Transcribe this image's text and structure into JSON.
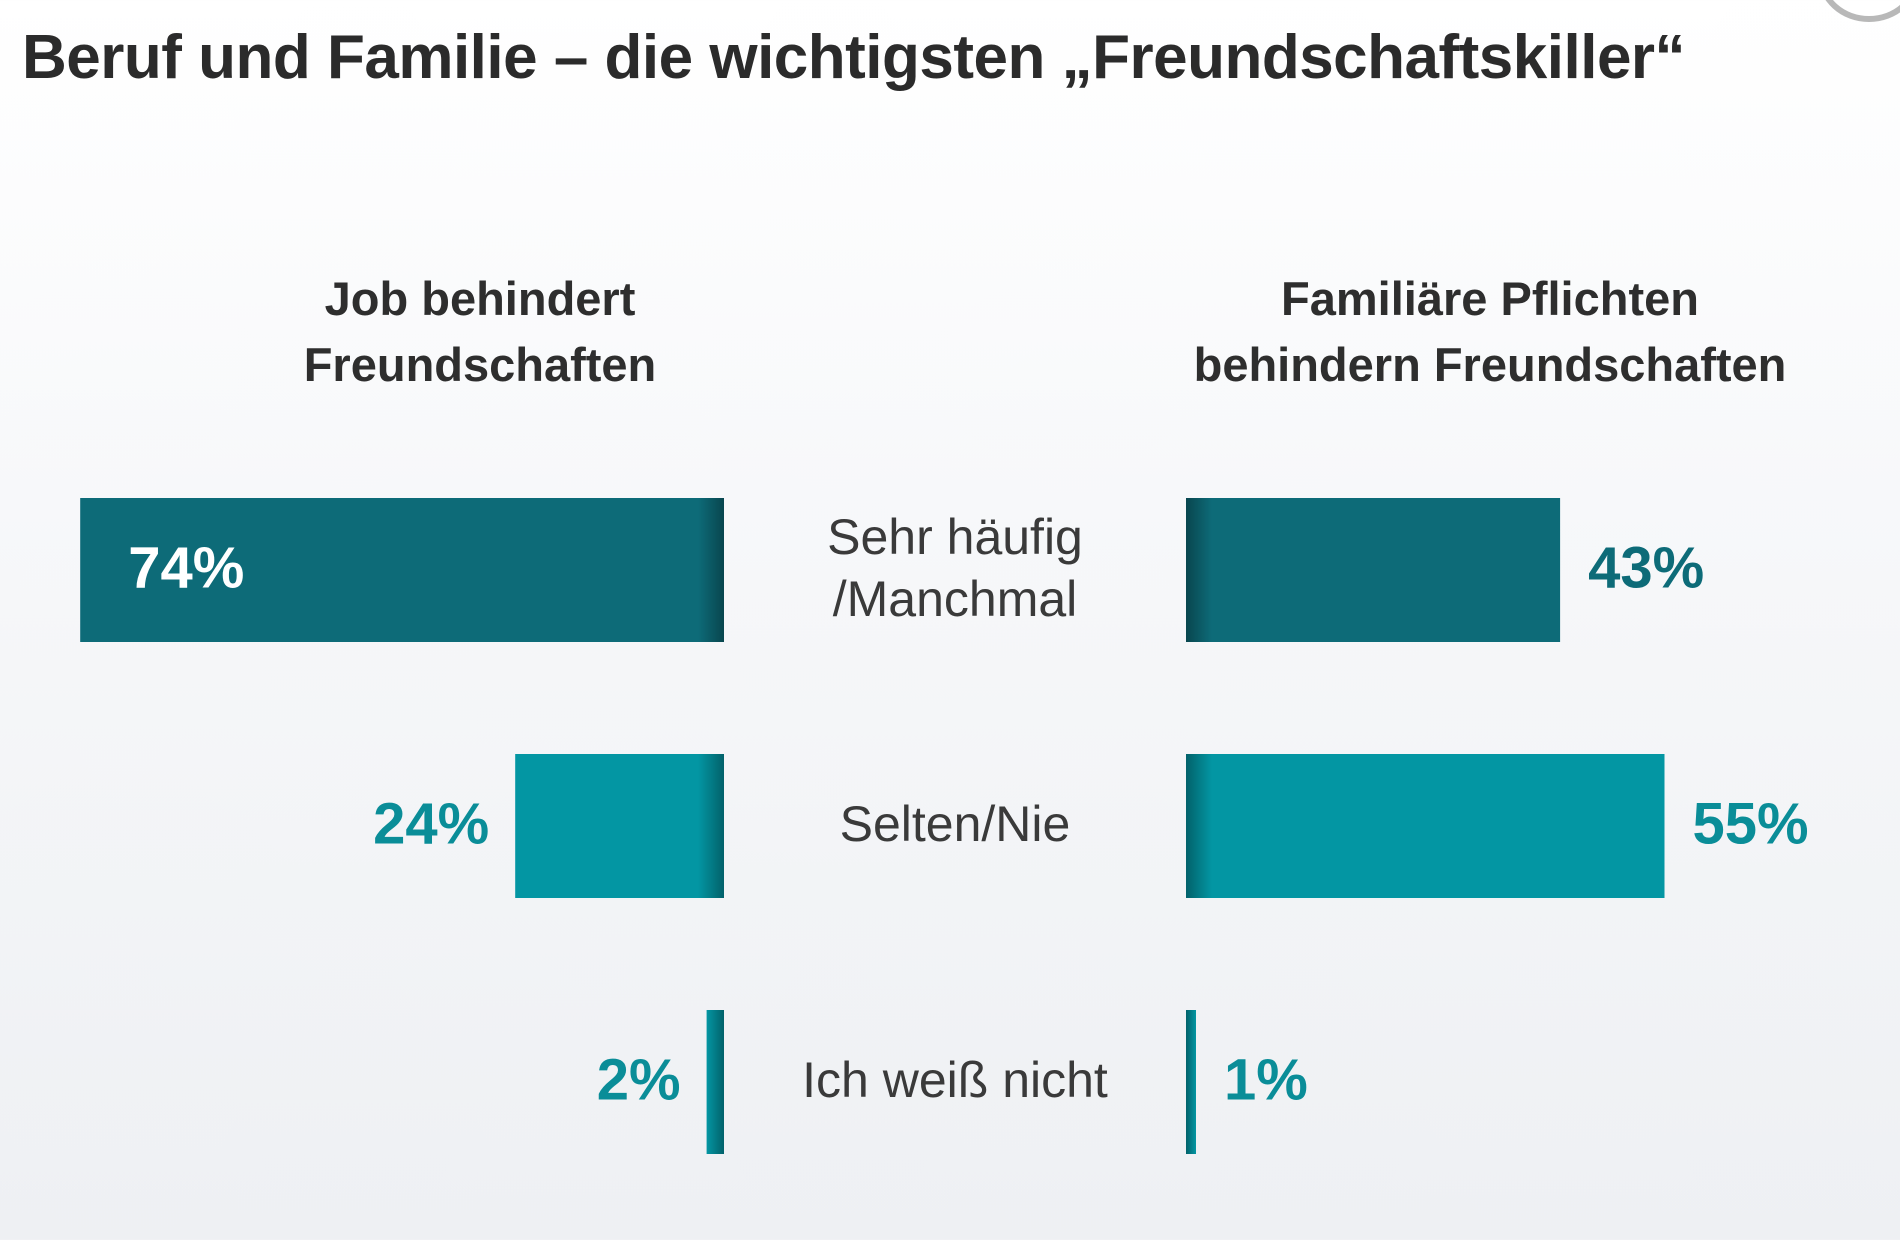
{
  "header": {
    "title": "Beruf und Familie – die wichtigsten „Freundschaftskiller“"
  },
  "panels": {
    "left": {
      "line1": "Job behindert",
      "line2": "Freundschaften"
    },
    "right": {
      "line1": "Familiäre Pflichten",
      "line2": "behindern Freundschaften"
    }
  },
  "colors": {
    "dark_teal": "#0d6b78",
    "mid_teal": "#0396a3",
    "label_teal": "#0a8d98",
    "category_text": "#3a3a3a"
  },
  "chart_data": {
    "type": "bar",
    "categories": [
      [
        "Sehr häufig",
        "/Manchmal"
      ],
      [
        "Selten/Nie"
      ],
      [
        "Ich weiß nicht"
      ]
    ],
    "series": [
      {
        "values": [
          74,
          24,
          2
        ],
        "labels": [
          "74%",
          "24%",
          "2%"
        ]
      },
      {
        "values": [
          43,
          55,
          1
        ],
        "labels": [
          "43%",
          "55%",
          "1%"
        ]
      }
    ],
    "xlim": [
      0,
      100
    ],
    "grid": false,
    "legend": "none"
  }
}
